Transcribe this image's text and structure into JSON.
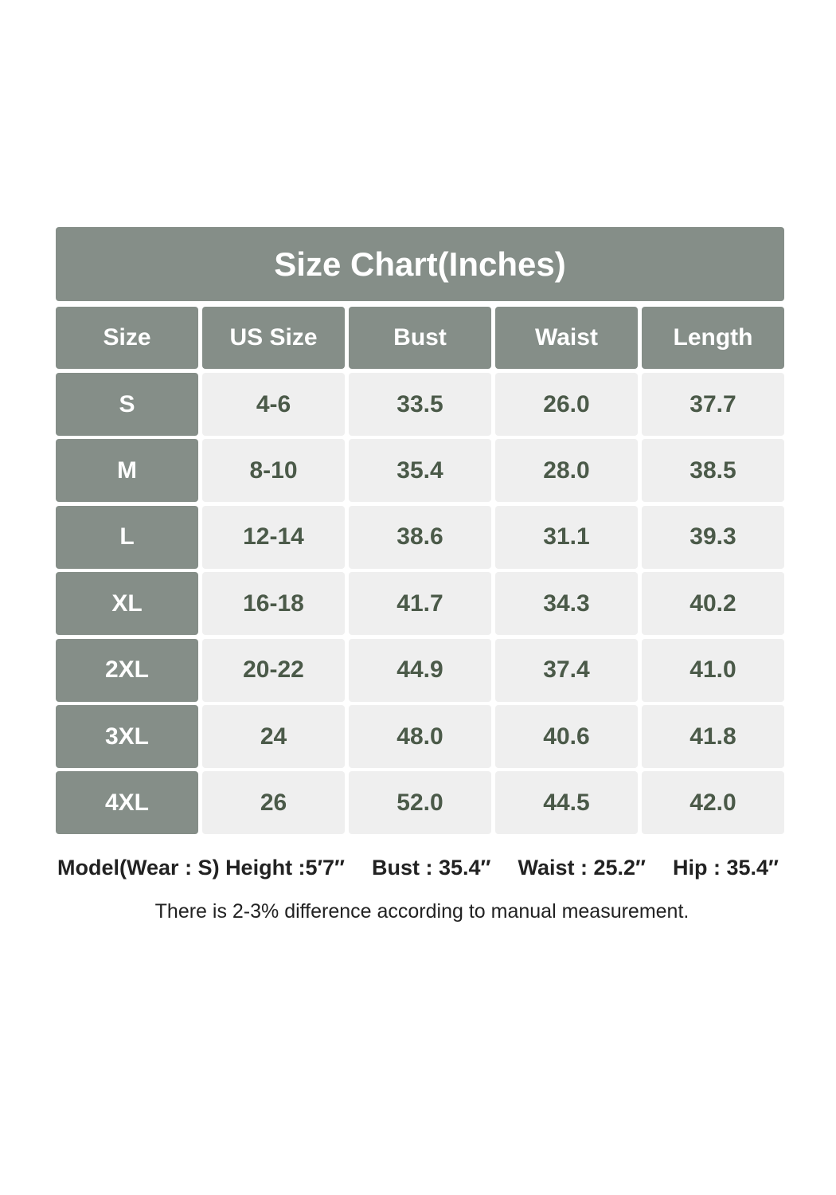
{
  "table": {
    "title": "Size Chart(Inches)",
    "header": [
      "Size",
      "US Size",
      "Bust",
      "Waist",
      "Length"
    ],
    "rows": [
      [
        "S",
        "4-6",
        "33.5",
        "26.0",
        "37.7"
      ],
      [
        "M",
        "8-10",
        "35.4",
        "28.0",
        "38.5"
      ],
      [
        "L",
        "12-14",
        "38.6",
        "31.1",
        "39.3"
      ],
      [
        "XL",
        "16-18",
        "41.7",
        "34.3",
        "40.2"
      ],
      [
        "2XL",
        "20-22",
        "44.9",
        "37.4",
        "41.0"
      ],
      [
        "3XL",
        "24",
        "48.0",
        "40.6",
        "41.8"
      ],
      [
        "4XL",
        "26",
        "52.0",
        "44.5",
        "42.0"
      ]
    ]
  },
  "footer": {
    "model": [
      "Model(Wear : S) Height :5′7″",
      "Bust : 35.4″",
      "Waist : 25.2″",
      "Hip : 35.4″"
    ],
    "note": "There is 2-3% difference according to manual measurement."
  }
}
